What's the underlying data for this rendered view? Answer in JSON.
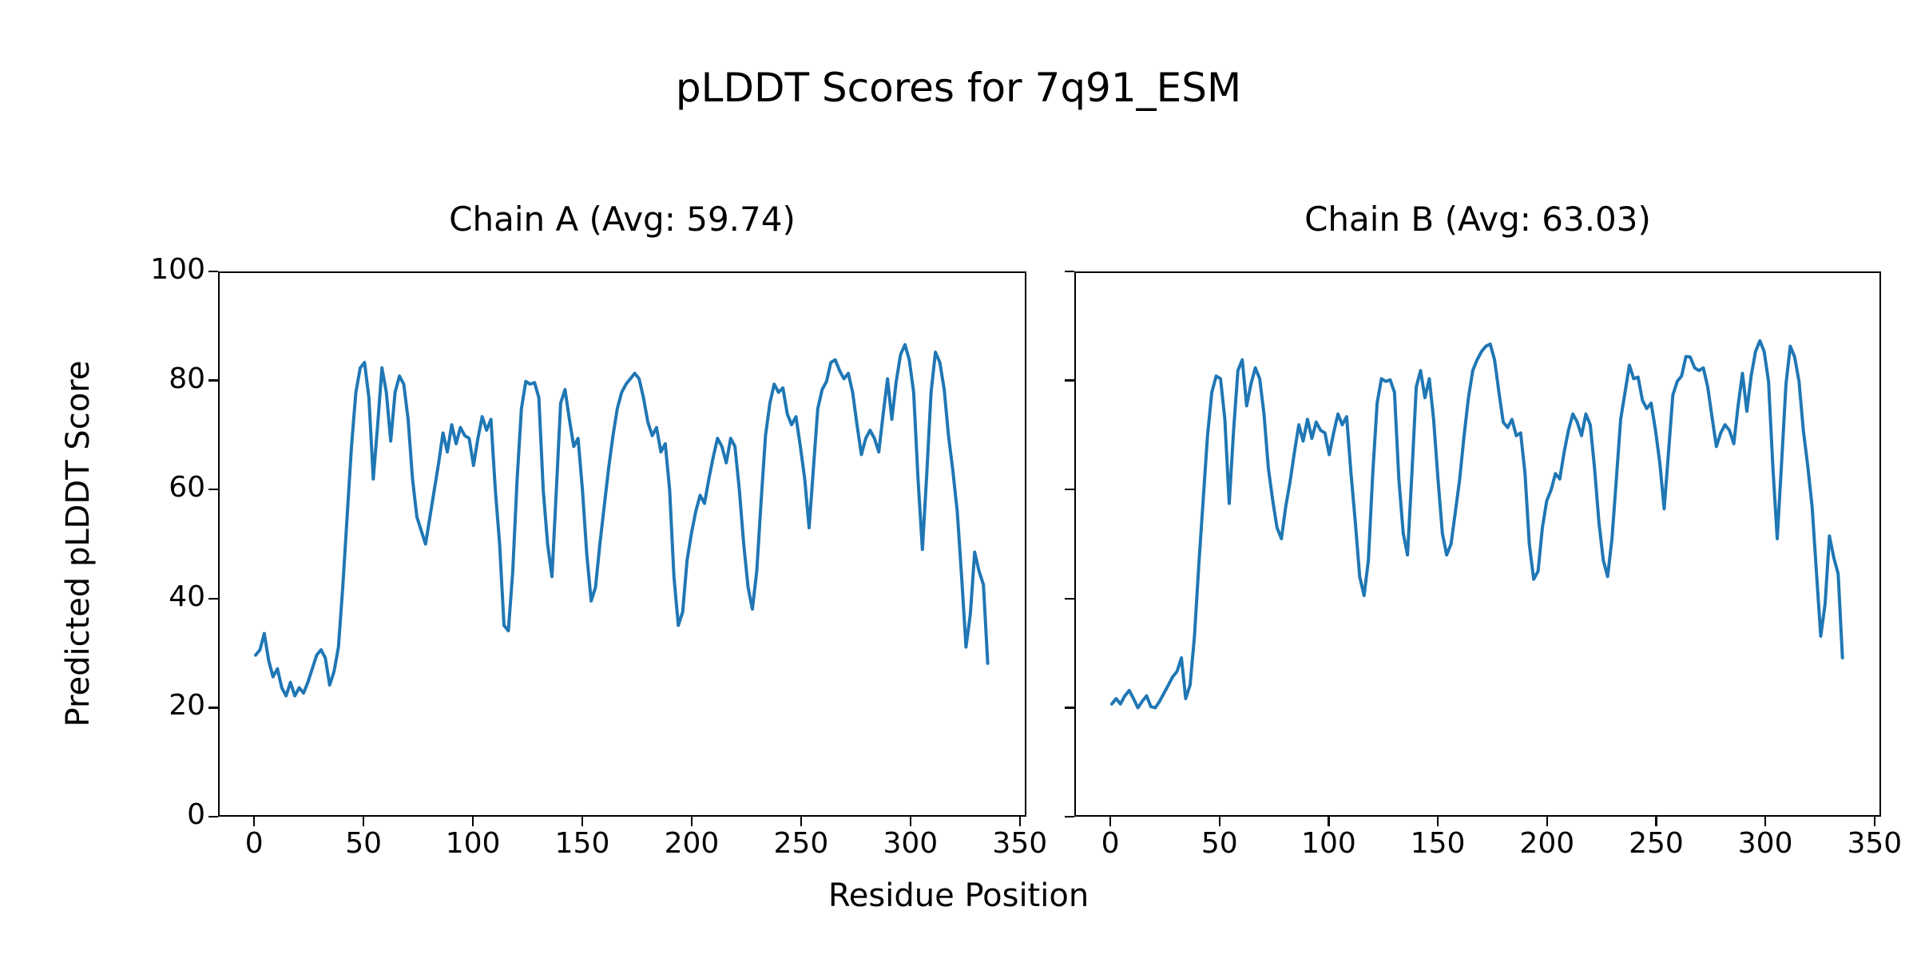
{
  "figure": {
    "title": "pLDDT Scores for 7q91_ESM",
    "xlabel": "Residue Position",
    "ylabel": "Predicted pLDDT Score",
    "background_color": "#ffffff",
    "text_color": "#000000",
    "line_color": "#1f77b4"
  },
  "chart_data": [
    {
      "type": "line",
      "title": "Chain A (Avg: 59.74)",
      "chain": "A",
      "average_plddt": 59.74,
      "xlabel": "Residue Position",
      "ylabel": "Predicted pLDDT Score",
      "xlim": [
        -16.5,
        353
      ],
      "ylim": [
        0,
        100
      ],
      "xticks": [
        0,
        50,
        100,
        150,
        200,
        250,
        300,
        350
      ],
      "yticks": [
        0,
        20,
        40,
        60,
        80,
        100
      ],
      "y_tick_labels_visible": true,
      "grid": false,
      "legend": null,
      "line_color": "#1f77b4",
      "x": [
        0,
        2,
        4,
        6,
        8,
        10,
        12,
        14,
        16,
        18,
        20,
        22,
        24,
        26,
        28,
        30,
        32,
        34,
        36,
        38,
        40,
        42,
        44,
        46,
        48,
        50,
        52,
        54,
        56,
        58,
        60,
        62,
        64,
        66,
        68,
        70,
        72,
        74,
        76,
        78,
        80,
        82,
        84,
        86,
        88,
        90,
        92,
        94,
        96,
        98,
        100,
        102,
        104,
        106,
        108,
        110,
        112,
        114,
        116,
        118,
        120,
        122,
        124,
        126,
        128,
        130,
        132,
        134,
        136,
        138,
        140,
        142,
        144,
        146,
        148,
        150,
        152,
        154,
        156,
        158,
        160,
        162,
        164,
        166,
        168,
        170,
        172,
        174,
        176,
        178,
        180,
        182,
        184,
        186,
        188,
        190,
        192,
        194,
        196,
        198,
        200,
        202,
        204,
        206,
        208,
        210,
        212,
        214,
        216,
        218,
        220,
        222,
        224,
        226,
        228,
        230,
        232,
        234,
        236,
        238,
        240,
        242,
        244,
        246,
        248,
        250,
        252,
        254,
        256,
        258,
        260,
        262,
        264,
        266,
        268,
        270,
        272,
        274,
        276,
        278,
        280,
        282,
        284,
        286,
        288,
        290,
        292,
        294,
        296,
        298,
        300,
        302,
        304,
        306,
        308,
        310,
        312,
        314,
        316,
        318,
        320,
        322,
        324,
        326,
        328,
        330,
        332,
        334,
        336
      ],
      "y": [
        29.5,
        30.5,
        33.5,
        28.5,
        25.5,
        27,
        23.5,
        22,
        24.5,
        22,
        23.5,
        22.5,
        24.5,
        27,
        29.5,
        30.5,
        29,
        24,
        26.5,
        31,
        42,
        55,
        68,
        78,
        82.5,
        83.5,
        77,
        62,
        72,
        82.5,
        78,
        69,
        78,
        81,
        79.5,
        73,
        62,
        55,
        52.5,
        50,
        55,
        60,
        65,
        70.5,
        67,
        72,
        68.5,
        71.5,
        70,
        69.5,
        64.5,
        69.5,
        73.5,
        71,
        73,
        60,
        50,
        35,
        34,
        45,
        62,
        75,
        80,
        79.5,
        79.8,
        77,
        60,
        50,
        44,
        60,
        76,
        78.5,
        73,
        68,
        69.5,
        60,
        48,
        39.5,
        42,
        50,
        57,
        64,
        70,
        75,
        78,
        79.5,
        80.5,
        81.5,
        80.5,
        77,
        72.5,
        70,
        71.5,
        67,
        68.5,
        60,
        44,
        35,
        37.5,
        47,
        52,
        56,
        59,
        57.5,
        62,
        66,
        69.5,
        68,
        65,
        69.5,
        68,
        60,
        50,
        42,
        38,
        45,
        58,
        70,
        76,
        79.5,
        78,
        78.8,
        74,
        72,
        73.5,
        68,
        62,
        53,
        64,
        75,
        78.5,
        80,
        83.5,
        84,
        82,
        80.5,
        81.5,
        78,
        72,
        66.5,
        69.5,
        71,
        69.5,
        67,
        74,
        80.5,
        73,
        80,
        85,
        86.8,
        84,
        78,
        62,
        49,
        63,
        78,
        85.4,
        83.5,
        78.5,
        70,
        63.5,
        56,
        44,
        31,
        37,
        48.5,
        45,
        42.5,
        28
      ]
    },
    {
      "type": "line",
      "title": "Chain B (Avg: 63.03)",
      "chain": "B",
      "average_plddt": 63.03,
      "xlabel": "Residue Position",
      "ylabel": "Predicted pLDDT Score",
      "xlim": [
        -16.5,
        353
      ],
      "ylim": [
        0,
        100
      ],
      "xticks": [
        0,
        50,
        100,
        150,
        200,
        250,
        300,
        350
      ],
      "yticks": [
        0,
        20,
        40,
        60,
        80,
        100
      ],
      "y_tick_labels_visible": false,
      "grid": false,
      "legend": null,
      "line_color": "#1f77b4",
      "x": [
        0,
        2,
        4,
        6,
        8,
        10,
        12,
        14,
        16,
        18,
        20,
        22,
        24,
        26,
        28,
        30,
        32,
        34,
        36,
        38,
        40,
        42,
        44,
        46,
        48,
        50,
        52,
        54,
        56,
        58,
        60,
        62,
        64,
        66,
        68,
        70,
        72,
        74,
        76,
        78,
        80,
        82,
        84,
        86,
        88,
        90,
        92,
        94,
        96,
        98,
        100,
        102,
        104,
        106,
        108,
        110,
        112,
        114,
        116,
        118,
        120,
        122,
        124,
        126,
        128,
        130,
        132,
        134,
        136,
        138,
        140,
        142,
        144,
        146,
        148,
        150,
        152,
        154,
        156,
        158,
        160,
        162,
        164,
        166,
        168,
        170,
        172,
        174,
        176,
        178,
        180,
        182,
        184,
        186,
        188,
        190,
        192,
        194,
        196,
        198,
        200,
        202,
        204,
        206,
        208,
        210,
        212,
        214,
        216,
        218,
        220,
        222,
        224,
        226,
        228,
        230,
        232,
        234,
        236,
        238,
        240,
        242,
        244,
        246,
        248,
        250,
        252,
        254,
        256,
        258,
        260,
        262,
        264,
        266,
        268,
        270,
        272,
        274,
        276,
        278,
        280,
        282,
        284,
        286,
        288,
        290,
        292,
        294,
        296,
        298,
        300,
        302,
        304,
        306,
        308,
        310,
        312,
        314,
        316,
        318,
        320,
        322,
        324,
        326,
        328,
        330,
        332,
        334,
        336
      ],
      "y": [
        20.5,
        21.5,
        20.5,
        22,
        23,
        21.5,
        19.8,
        21,
        22,
        20,
        19.8,
        21,
        22.5,
        24,
        25.5,
        26.5,
        29,
        21.5,
        24,
        33,
        46,
        58,
        70,
        78,
        81,
        80.5,
        73,
        57.5,
        71,
        82,
        84,
        75.5,
        79.5,
        82.5,
        80.5,
        74,
        64,
        58,
        53,
        51,
        57,
        61.5,
        67,
        72,
        69,
        73,
        69.5,
        72.5,
        71,
        70.5,
        66.5,
        70.5,
        74,
        72,
        73.5,
        63,
        54,
        44,
        40.5,
        47,
        63,
        76,
        80.5,
        80,
        80.3,
        78,
        62,
        52,
        48,
        63,
        79,
        82,
        77,
        80.5,
        73,
        62,
        52,
        48,
        50,
        56,
        62,
        70,
        77,
        82,
        84,
        85.5,
        86.5,
        86.9,
        84,
        78,
        72.5,
        71.5,
        73,
        70,
        70.5,
        63,
        50,
        43.5,
        45,
        53,
        58,
        60,
        63,
        62,
        67,
        71,
        74,
        72.5,
        70,
        74,
        72,
        64,
        54,
        47,
        44,
        51,
        62,
        73,
        78,
        83,
        80.5,
        80.8,
        76.5,
        75,
        76,
        71,
        65,
        56.5,
        67,
        77.5,
        80,
        81,
        84.6,
        84.5,
        82.5,
        82,
        82.5,
        79,
        73.5,
        68,
        70.5,
        72,
        71,
        68.5,
        75.5,
        81.5,
        74.5,
        81,
        85.5,
        87.5,
        85.5,
        80,
        64,
        51,
        65,
        79.5,
        86.5,
        84.5,
        80,
        71,
        64.5,
        57,
        45,
        33,
        39,
        51.5,
        47.5,
        44.5,
        29
      ]
    }
  ]
}
